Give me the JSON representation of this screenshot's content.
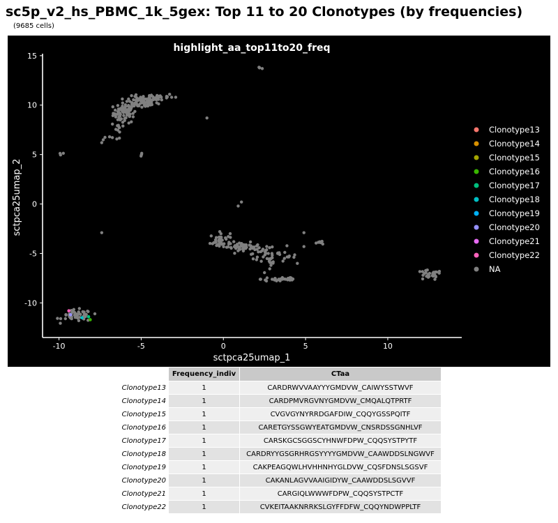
{
  "page": {
    "title": "sc5p_v2_hs_PBMC_1k_5gex: Top 11 to 20 Clonotypes (by frequencies)",
    "subtitle": "(9685 cells)"
  },
  "chart_data": {
    "type": "scatter",
    "title": "highlight_aa_top11to20_freq",
    "xlabel": "sctpca25umap_1",
    "ylabel": "sctpca25umap_2",
    "xlim": [
      -11,
      14.5
    ],
    "ylim": [
      -13.5,
      15.2
    ],
    "xticks": [
      -10,
      -5,
      0,
      5,
      10
    ],
    "yticks": [
      15,
      10,
      5,
      0,
      -5,
      -10
    ],
    "background": "#000000",
    "grid": false,
    "legend_position": "right",
    "legend": [
      {
        "name": "Clonotype13",
        "color": "#F8766D"
      },
      {
        "name": "Clonotype14",
        "color": "#D89000"
      },
      {
        "name": "Clonotype15",
        "color": "#A3A500"
      },
      {
        "name": "Clonotype16",
        "color": "#39B600"
      },
      {
        "name": "Clonotype17",
        "color": "#00BF7D"
      },
      {
        "name": "Clonotype18",
        "color": "#00BFC4"
      },
      {
        "name": "Clonotype19",
        "color": "#00B0F6"
      },
      {
        "name": "Clonotype20",
        "color": "#9590FF"
      },
      {
        "name": "Clonotype21",
        "color": "#E76BF3"
      },
      {
        "name": "Clonotype22",
        "color": "#FF62BC"
      },
      {
        "name": "NA",
        "color": "#808080"
      }
    ],
    "highlighted_points": [
      {
        "x": -9.4,
        "y": -10.8,
        "series": "Clonotype22"
      },
      {
        "x": -8.2,
        "y": -11.4,
        "series": "Clonotype17"
      },
      {
        "x": -8.1,
        "y": -11.7,
        "series": "Clonotype16"
      },
      {
        "x": -9.3,
        "y": -11.2,
        "series": "Clonotype20"
      },
      {
        "x": -8.6,
        "y": -11.5,
        "series": "Clonotype18"
      }
    ],
    "na_clusters": [
      {
        "cx": -6.0,
        "cy": 9.2,
        "sx": 0.35,
        "sy": 0.5,
        "n": 70
      },
      {
        "cx": -5.0,
        "cy": 10.3,
        "sx": 0.5,
        "sy": 0.3,
        "n": 70
      },
      {
        "cx": -4.0,
        "cy": 10.8,
        "sx": 0.5,
        "sy": 0.2,
        "n": 35
      },
      {
        "cx": -6.4,
        "cy": 7.8,
        "sx": 0.1,
        "sy": 0.25,
        "n": 8
      },
      {
        "cx": -7.0,
        "cy": 6.7,
        "sx": 0.3,
        "sy": 0.1,
        "n": 6
      },
      {
        "cx": -9.8,
        "cy": 5.1,
        "sx": 0.1,
        "sy": 0.06,
        "n": 3
      },
      {
        "cx": -5.0,
        "cy": 4.9,
        "sx": 0.04,
        "sy": 0.1,
        "n": 4
      },
      {
        "cx": 2.2,
        "cy": 13.8,
        "sx": 0.06,
        "sy": 0.05,
        "n": 4
      },
      {
        "cx": -0.2,
        "cy": -3.7,
        "sx": 0.3,
        "sy": 0.4,
        "n": 40
      },
      {
        "cx": 1.2,
        "cy": -4.3,
        "sx": 0.5,
        "sy": 0.2,
        "n": 45
      },
      {
        "cx": 2.5,
        "cy": -5.0,
        "sx": 0.5,
        "sy": 0.3,
        "n": 35
      },
      {
        "cx": 2.9,
        "cy": -6.2,
        "sx": 0.2,
        "sy": 0.4,
        "n": 12
      },
      {
        "cx": 3.5,
        "cy": -7.6,
        "sx": 0.6,
        "sy": 0.15,
        "n": 30
      },
      {
        "cx": 4.0,
        "cy": -5.2,
        "sx": 0.3,
        "sy": 0.3,
        "n": 8
      },
      {
        "cx": 6.0,
        "cy": -3.9,
        "sx": 0.3,
        "sy": 0.1,
        "n": 7
      },
      {
        "cx": 12.5,
        "cy": -7.2,
        "sx": 0.4,
        "sy": 0.25,
        "n": 28
      },
      {
        "cx": -8.9,
        "cy": -11.3,
        "sx": 0.45,
        "sy": 0.3,
        "n": 55
      }
    ],
    "na_points": [
      {
        "x": -1.0,
        "y": 8.7
      },
      {
        "x": -7.4,
        "y": 6.2
      },
      {
        "x": -2.9,
        "y": 10.8
      },
      {
        "x": -7.4,
        "y": -2.9
      },
      {
        "x": 1.1,
        "y": 0.2
      },
      {
        "x": 0.9,
        "y": -0.2
      },
      {
        "x": 4.9,
        "y": -2.9
      },
      {
        "x": 4.9,
        "y": -4.3
      },
      {
        "x": 4.5,
        "y": -6.0
      }
    ]
  },
  "table": {
    "columns": [
      "Frequency_indiv",
      "CTaa"
    ],
    "rows": [
      {
        "name": "Clonotype13",
        "freq": "1",
        "ctaa": "CARDRWVVAAYYYGMDVW_CAIWYSSTWVF"
      },
      {
        "name": "Clonotype14",
        "freq": "1",
        "ctaa": "CARDPMVRGVNYGMDVW_CMQALQTPRTF"
      },
      {
        "name": "Clonotype15",
        "freq": "1",
        "ctaa": "CVGVGYNYRRDGAFDIW_CQQYGSSPQITF"
      },
      {
        "name": "Clonotype16",
        "freq": "1",
        "ctaa": "CARETGYSSGWYEATGMDVW_CNSRDSSGNHLVF"
      },
      {
        "name": "Clonotype17",
        "freq": "1",
        "ctaa": "CARSKGCSGGSCYHNWFDPW_CQQSYSTPYTF"
      },
      {
        "name": "Clonotype18",
        "freq": "1",
        "ctaa": "CARDRYYGSGRHRGSYYYYGMDVW_CAAWDDSLNGWVF"
      },
      {
        "name": "Clonotype19",
        "freq": "1",
        "ctaa": "CAKPEAGQWLHVHHNHYGLDVW_CQSFDNSLSGSVF"
      },
      {
        "name": "Clonotype20",
        "freq": "1",
        "ctaa": "CAKANLAGVVAAIGIDYW_CAAWDDSLSGVVF"
      },
      {
        "name": "Clonotype21",
        "freq": "1",
        "ctaa": "CARGIQLWWWFDPW_CQQSYSTPCTF"
      },
      {
        "name": "Clonotype22",
        "freq": "1",
        "ctaa": "CVKEITAAKNRRKSLGYFFDFW_CQQYNDWPPLTF"
      }
    ]
  }
}
